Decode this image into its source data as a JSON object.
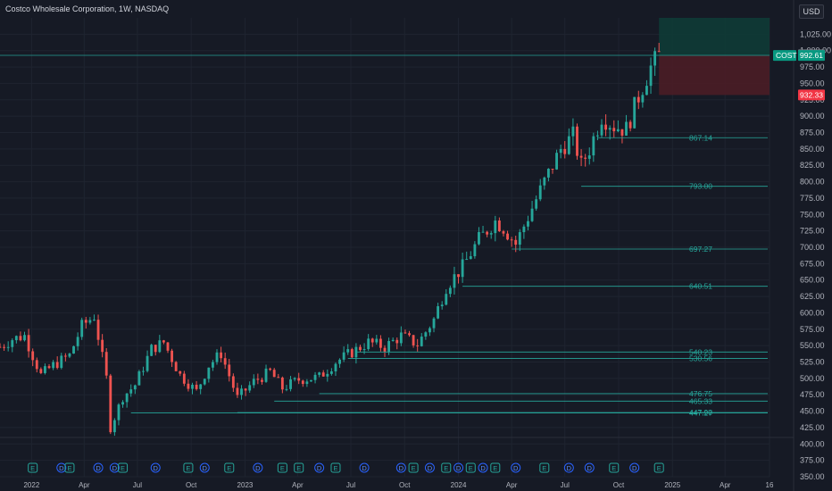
{
  "header": {
    "title": "Costco Wholesale Corporation, 1W, NASDAQ",
    "currency": "USD"
  },
  "colors": {
    "background": "#161a25",
    "up": "#26a69a",
    "down": "#ef5350",
    "level": "#26a69a",
    "grid": "#1f2430",
    "axis_text": "#b2b5be",
    "ticker_tag": "#089981",
    "stop_tag": "#f23645",
    "target_zone": "#0e3b36",
    "stop_zone": "#4a1d26",
    "last_price_tag": "#7a7d86"
  },
  "chart_data": {
    "type": "candlestick",
    "title": "Costco Wholesale Corporation, 1W, NASDAQ",
    "x_range": [
      "2021-11-08",
      "2025-06-16"
    ],
    "y_range": [
      350,
      1050
    ],
    "y_ticks": [
      350,
      375,
      400,
      425,
      450,
      475,
      500,
      525,
      550,
      575,
      600,
      625,
      650,
      675,
      700,
      725,
      750,
      775,
      800,
      825,
      850,
      875,
      900,
      925,
      950,
      975,
      1000,
      1025
    ],
    "y_tick_labels": [
      "350.00",
      "375.00",
      "400.00",
      "425.00",
      "450.00",
      "475.00",
      "500.00",
      "525.00",
      "550.00",
      "575.00",
      "600.00",
      "625.00",
      "650.00",
      "675.00",
      "700.00",
      "725.00",
      "750.00",
      "775.00",
      "800.00",
      "825.00",
      "850.00",
      "875.00",
      "900.00",
      "925.00",
      "950.00",
      "975.00",
      "1,000.00",
      "1,025.00"
    ],
    "x_ticks": [
      {
        "date": "2022-01-01",
        "label": "2022"
      },
      {
        "date": "2022-04-01",
        "label": "Apr"
      },
      {
        "date": "2022-07-01",
        "label": "Jul"
      },
      {
        "date": "2022-10-01",
        "label": "Oct"
      },
      {
        "date": "2023-01-01",
        "label": "2023"
      },
      {
        "date": "2023-04-01",
        "label": "Apr"
      },
      {
        "date": "2023-07-01",
        "label": "Jul"
      },
      {
        "date": "2023-10-01",
        "label": "Oct"
      },
      {
        "date": "2024-01-01",
        "label": "2024"
      },
      {
        "date": "2024-04-01",
        "label": "Apr"
      },
      {
        "date": "2024-07-01",
        "label": "Jul"
      },
      {
        "date": "2024-10-01",
        "label": "Oct"
      },
      {
        "date": "2025-01-01",
        "label": "2025"
      },
      {
        "date": "2025-04-01",
        "label": "Apr"
      },
      {
        "date": "2025-06-16",
        "label": "16"
      }
    ],
    "close_path": [
      [
        "2021-11-08",
        548
      ],
      [
        "2021-11-29",
        560
      ],
      [
        "2021-12-20",
        565
      ],
      [
        "2022-01-17",
        505
      ],
      [
        "2022-02-07",
        520
      ],
      [
        "2022-03-07",
        535
      ],
      [
        "2022-03-28",
        580
      ],
      [
        "2022-04-18",
        595
      ],
      [
        "2022-05-09",
        500
      ],
      [
        "2022-05-16",
        425
      ],
      [
        "2022-06-06",
        472
      ],
      [
        "2022-06-27",
        490
      ],
      [
        "2022-07-25",
        545
      ],
      [
        "2022-08-15",
        555
      ],
      [
        "2022-09-12",
        505
      ],
      [
        "2022-10-10",
        480
      ],
      [
        "2022-10-31",
        520
      ],
      [
        "2022-11-21",
        538
      ],
      [
        "2022-12-19",
        470
      ],
      [
        "2023-01-16",
        495
      ],
      [
        "2023-02-13",
        510
      ],
      [
        "2023-03-06",
        485
      ],
      [
        "2023-04-03",
        498
      ],
      [
        "2023-05-08",
        502
      ],
      [
        "2023-06-05",
        525
      ],
      [
        "2023-07-03",
        540
      ],
      [
        "2023-07-31",
        555
      ],
      [
        "2023-08-28",
        548
      ],
      [
        "2023-09-25",
        565
      ],
      [
        "2023-10-23",
        552
      ],
      [
        "2023-11-20",
        590
      ],
      [
        "2023-12-11",
        640
      ],
      [
        "2024-01-08",
        670
      ],
      [
        "2024-02-05",
        712
      ],
      [
        "2024-03-04",
        740
      ],
      [
        "2024-03-18",
        730
      ],
      [
        "2024-04-08",
        705
      ],
      [
        "2024-05-06",
        760
      ],
      [
        "2024-05-27",
        800
      ],
      [
        "2024-06-24",
        850
      ],
      [
        "2024-07-15",
        870
      ],
      [
        "2024-07-29",
        825
      ],
      [
        "2024-08-12",
        850
      ],
      [
        "2024-09-02",
        900
      ],
      [
        "2024-09-23",
        885
      ],
      [
        "2024-10-14",
        880
      ],
      [
        "2024-11-04",
        930
      ],
      [
        "2024-11-25",
        975
      ],
      [
        "2024-12-09",
        992.61
      ]
    ],
    "horizontal_levels": [
      {
        "value": 867.14,
        "label": "867.14",
        "from": "2024-08-26"
      },
      {
        "value": 793.0,
        "label": "793.00",
        "from": "2024-07-29"
      },
      {
        "value": 697.27,
        "label": "697.27",
        "from": "2024-04-01"
      },
      {
        "value": 640.51,
        "label": "640.51",
        "from": "2024-01-08"
      },
      {
        "value": 540.23,
        "label": "540.23",
        "from": "2023-07-10"
      },
      {
        "value": 530.56,
        "label": "530.56",
        "from": "2023-06-26"
      },
      {
        "value": 476.75,
        "label": "476.75",
        "from": "2023-05-08"
      },
      {
        "value": 465.33,
        "label": "465.33",
        "from": "2023-02-20"
      },
      {
        "value": 447.9,
        "label": "447.90",
        "from": "2022-12-19"
      },
      {
        "value": 447.27,
        "label": "447.27",
        "from": "2022-06-20"
      }
    ],
    "last_price": {
      "value": 993.65,
      "label": "993.65"
    },
    "current_price": {
      "value": 992.61,
      "label": "992.61",
      "ticker": "COST"
    },
    "stop_level": {
      "value": 932.33,
      "label": "932.33"
    },
    "position_zones": {
      "from": "2024-12-09",
      "target_top": 1050,
      "entry": 992.61,
      "stop": 932.33
    },
    "event_markers": [
      {
        "date": "2022-01-03",
        "kind": "E"
      },
      {
        "date": "2022-02-21",
        "kind": "D"
      },
      {
        "date": "2022-03-07",
        "kind": "E"
      },
      {
        "date": "2022-04-25",
        "kind": "D"
      },
      {
        "date": "2022-05-23",
        "kind": "D"
      },
      {
        "date": "2022-06-06",
        "kind": "E"
      },
      {
        "date": "2022-08-01",
        "kind": "D"
      },
      {
        "date": "2022-09-26",
        "kind": "E"
      },
      {
        "date": "2022-10-24",
        "kind": "D"
      },
      {
        "date": "2022-12-05",
        "kind": "E"
      },
      {
        "date": "2023-01-23",
        "kind": "D"
      },
      {
        "date": "2023-03-06",
        "kind": "E"
      },
      {
        "date": "2023-04-03",
        "kind": "E"
      },
      {
        "date": "2023-05-08",
        "kind": "D"
      },
      {
        "date": "2023-06-05",
        "kind": "E"
      },
      {
        "date": "2023-07-24",
        "kind": "D"
      },
      {
        "date": "2023-09-25",
        "kind": "D"
      },
      {
        "date": "2023-10-16",
        "kind": "E"
      },
      {
        "date": "2023-11-13",
        "kind": "D"
      },
      {
        "date": "2023-12-11",
        "kind": "E"
      },
      {
        "date": "2024-01-01",
        "kind": "D"
      },
      {
        "date": "2024-01-22",
        "kind": "E"
      },
      {
        "date": "2024-02-12",
        "kind": "D"
      },
      {
        "date": "2024-03-04",
        "kind": "E"
      },
      {
        "date": "2024-04-08",
        "kind": "D"
      },
      {
        "date": "2024-05-27",
        "kind": "E"
      },
      {
        "date": "2024-07-08",
        "kind": "D"
      },
      {
        "date": "2024-08-12",
        "kind": "D"
      },
      {
        "date": "2024-09-23",
        "kind": "E"
      },
      {
        "date": "2024-10-28",
        "kind": "D"
      },
      {
        "date": "2024-12-09",
        "kind": "E"
      }
    ]
  }
}
